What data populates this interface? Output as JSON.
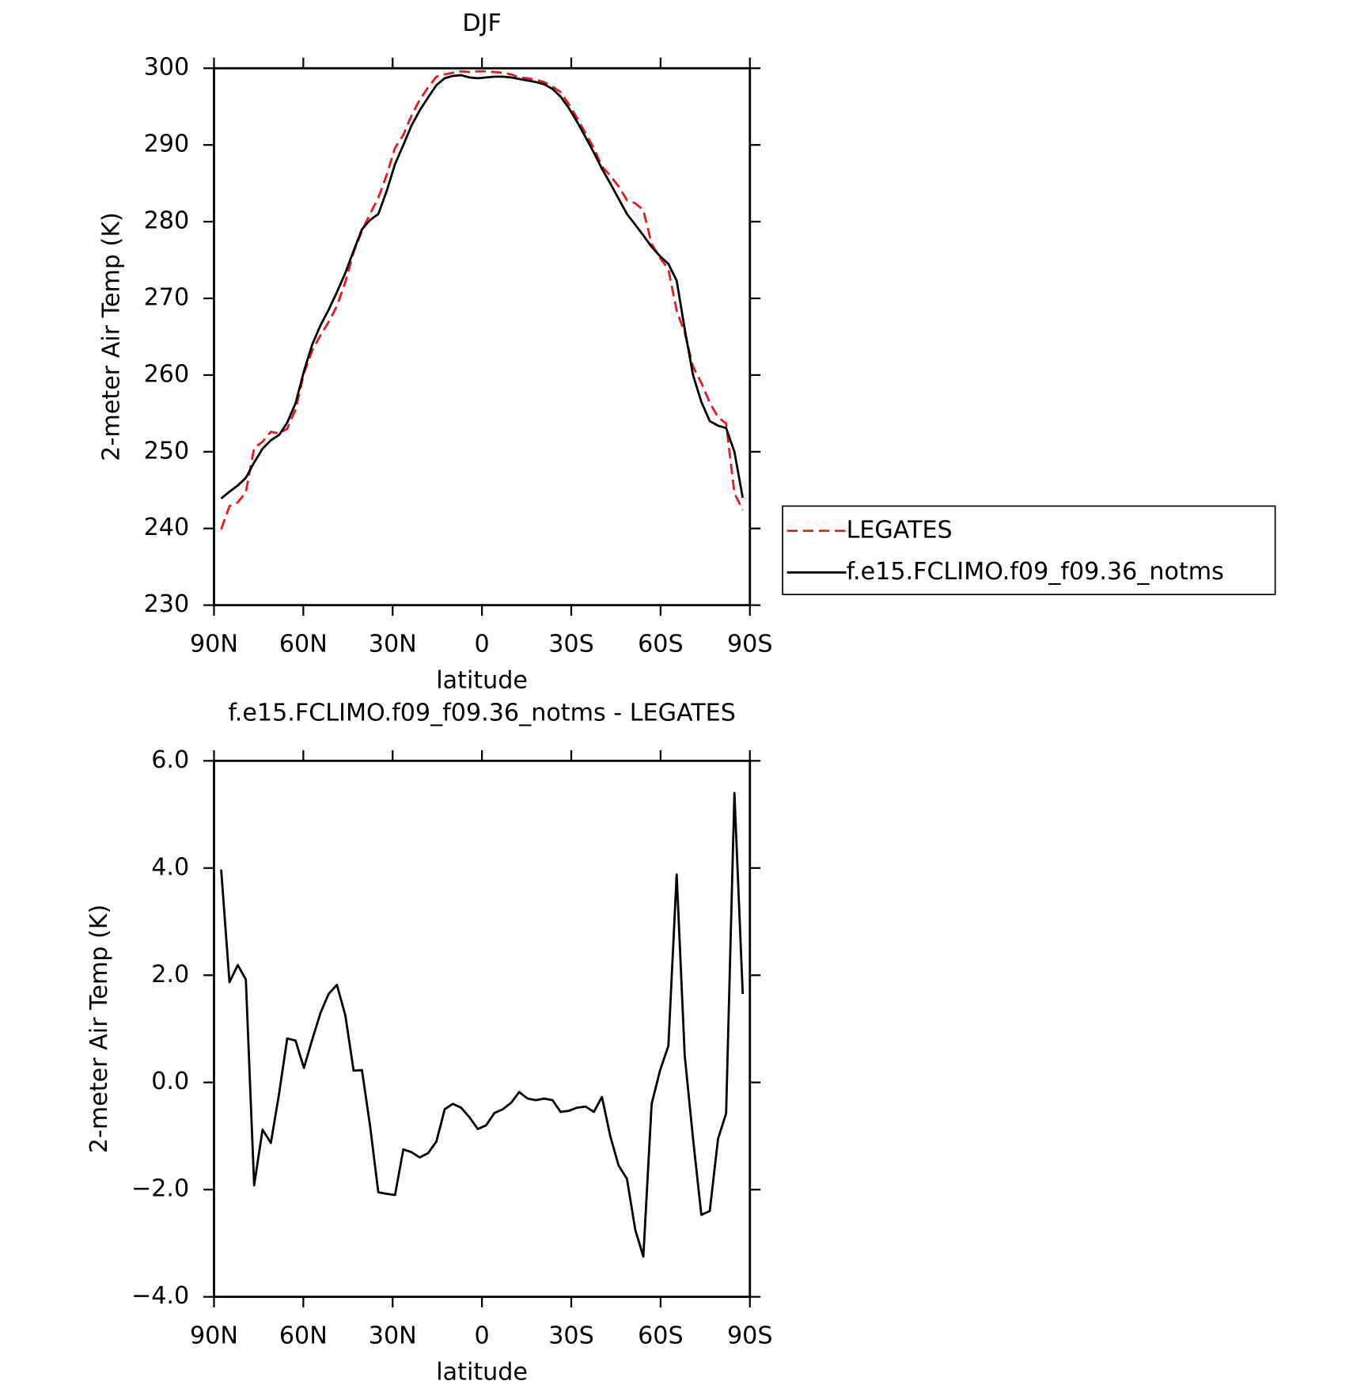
{
  "chart_data": [
    {
      "type": "line",
      "title": "DJF",
      "xlabel": "latitude",
      "ylabel": "2-meter Air Temp (K)",
      "xlim": [
        90,
        -90
      ],
      "xticks": [
        {
          "value": 90,
          "label": "90N"
        },
        {
          "value": 60,
          "label": "60N"
        },
        {
          "value": 30,
          "label": "30N"
        },
        0,
        {
          "value": -30,
          "label": "30S"
        },
        {
          "value": -60,
          "label": "60S"
        },
        {
          "value": -90,
          "label": "90S"
        }
      ],
      "ylim": [
        230,
        300
      ],
      "yticks": [
        230,
        240,
        250,
        260,
        270,
        280,
        290,
        300
      ],
      "legend": "right",
      "x": [
        87.6,
        84.8,
        82.0,
        79.3,
        76.5,
        73.7,
        70.9,
        68.1,
        65.4,
        62.6,
        59.8,
        57.0,
        54.2,
        51.5,
        48.7,
        45.9,
        43.1,
        40.3,
        37.6,
        34.8,
        32.0,
        29.2,
        26.4,
        23.7,
        20.9,
        18.1,
        15.3,
        12.5,
        9.8,
        7.0,
        4.2,
        1.4,
        -1.4,
        -4.2,
        -7.0,
        -9.8,
        -12.5,
        -15.3,
        -18.1,
        -20.9,
        -23.7,
        -26.4,
        -29.2,
        -32.0,
        -34.8,
        -37.6,
        -40.3,
        -43.1,
        -45.9,
        -48.7,
        -51.5,
        -54.2,
        -57.0,
        -59.8,
        -62.6,
        -65.4,
        -68.1,
        -70.9,
        -73.7,
        -76.5,
        -79.3,
        -82.0,
        -84.8,
        -87.6
      ],
      "series": [
        {
          "name": "LEGATES",
          "color": "#e41a1c",
          "linestyle": "dashed",
          "values": [
            239.9,
            242.9,
            243.4,
            244.7,
            250.5,
            251.3,
            252.6,
            252.4,
            253.0,
            255.5,
            260.2,
            263.2,
            265.2,
            266.9,
            269.0,
            272.1,
            276.0,
            278.8,
            281.0,
            283.1,
            286.1,
            289.6,
            291.3,
            293.8,
            295.9,
            297.5,
            298.9,
            299.2,
            299.4,
            299.6,
            299.5,
            299.6,
            299.6,
            299.5,
            299.4,
            299.2,
            298.8,
            298.7,
            298.5,
            298.2,
            297.6,
            296.9,
            295.3,
            293.5,
            291.5,
            289.6,
            287.2,
            286.0,
            284.6,
            282.8,
            282.4,
            281.5,
            277.1,
            275.3,
            273.8,
            268.4,
            265.5,
            261.1,
            259.0,
            256.4,
            254.5,
            253.7,
            244.6,
            242.4
          ]
        },
        {
          "name": "f.e15.FCLIMO.f09_f09.36_notms",
          "color": "#000000",
          "linestyle": "solid",
          "values": [
            243.9,
            244.8,
            245.6,
            246.6,
            248.6,
            250.4,
            251.5,
            252.2,
            253.8,
            256.3,
            260.5,
            264.0,
            266.5,
            268.5,
            270.8,
            273.3,
            276.2,
            279.0,
            280.2,
            281.0,
            284.0,
            287.5,
            290.0,
            292.5,
            294.5,
            296.2,
            297.8,
            298.7,
            299.0,
            299.1,
            298.8,
            298.7,
            298.8,
            298.9,
            298.9,
            298.8,
            298.6,
            298.4,
            298.2,
            297.9,
            297.3,
            296.3,
            294.8,
            293.0,
            291.0,
            289.0,
            286.9,
            285.0,
            283.0,
            281.0,
            279.6,
            278.2,
            276.7,
            275.5,
            274.5,
            272.3,
            266.0,
            260.0,
            256.5,
            254.0,
            253.4,
            253.1,
            250.0,
            244.0
          ]
        }
      ]
    },
    {
      "type": "line",
      "title": "f.e15.FCLIMO.f09_f09.36_notms - LEGATES",
      "xlabel": "latitude",
      "ylabel": "2-meter Air Temp (K)",
      "xlim": [
        90,
        -90
      ],
      "xticks": [
        {
          "value": 90,
          "label": "90N"
        },
        {
          "value": 60,
          "label": "60N"
        },
        {
          "value": 30,
          "label": "30N"
        },
        0,
        {
          "value": -30,
          "label": "30S"
        },
        {
          "value": -60,
          "label": "60S"
        },
        {
          "value": -90,
          "label": "90S"
        }
      ],
      "ylim": [
        -4,
        6
      ],
      "yticks": [
        {
          "value": -4,
          "label": "−4.0"
        },
        {
          "value": -2,
          "label": "−2.0"
        },
        {
          "value": 0,
          "label": "0.0"
        },
        {
          "value": 2,
          "label": "2.0"
        },
        {
          "value": 4,
          "label": "4.0"
        },
        {
          "value": 6,
          "label": "6.0"
        }
      ],
      "x": [
        87.6,
        84.8,
        82.0,
        79.3,
        76.5,
        73.7,
        70.9,
        68.1,
        65.4,
        62.6,
        59.8,
        57.0,
        54.2,
        51.5,
        48.7,
        45.9,
        43.1,
        40.3,
        37.6,
        34.8,
        32.0,
        29.2,
        26.4,
        23.7,
        20.9,
        18.1,
        15.3,
        12.5,
        9.8,
        7.0,
        4.2,
        1.4,
        -1.4,
        -4.2,
        -7.0,
        -9.8,
        -12.5,
        -15.3,
        -18.1,
        -20.9,
        -23.7,
        -26.4,
        -29.2,
        -32.0,
        -34.8,
        -37.6,
        -40.3,
        -43.1,
        -45.9,
        -48.7,
        -51.5,
        -54.2,
        -57.0,
        -59.8,
        -62.6,
        -65.4,
        -68.1,
        -70.9,
        -73.7,
        -76.5,
        -79.3,
        -82.0,
        -84.8,
        -87.6
      ],
      "color": "#000000",
      "values": [
        3.97,
        1.87,
        2.19,
        1.92,
        -1.92,
        -0.88,
        -1.13,
        -0.2,
        0.82,
        0.78,
        0.27,
        0.8,
        1.3,
        1.65,
        1.82,
        1.25,
        0.22,
        0.23,
        -0.8,
        -2.05,
        -2.08,
        -2.1,
        -1.25,
        -1.3,
        -1.4,
        -1.32,
        -1.1,
        -0.5,
        -0.4,
        -0.47,
        -0.65,
        -0.87,
        -0.8,
        -0.57,
        -0.5,
        -0.38,
        -0.18,
        -0.3,
        -0.33,
        -0.3,
        -0.33,
        -0.55,
        -0.53,
        -0.47,
        -0.45,
        -0.55,
        -0.27,
        -1.0,
        -1.55,
        -1.8,
        -2.75,
        -3.25,
        -0.4,
        0.22,
        0.68,
        3.88,
        0.5,
        -1.05,
        -2.47,
        -2.4,
        -1.05,
        -0.58,
        5.4,
        1.65
      ]
    }
  ]
}
